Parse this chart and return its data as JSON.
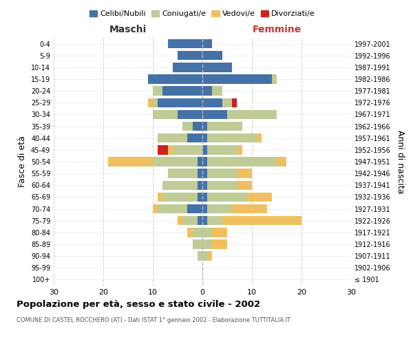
{
  "age_groups": [
    "100+",
    "95-99",
    "90-94",
    "85-89",
    "80-84",
    "75-79",
    "70-74",
    "65-69",
    "60-64",
    "55-59",
    "50-54",
    "45-49",
    "40-44",
    "35-39",
    "30-34",
    "25-29",
    "20-24",
    "15-19",
    "10-14",
    "5-9",
    "0-4"
  ],
  "birth_years": [
    "≤ 1901",
    "1902-1906",
    "1907-1911",
    "1912-1916",
    "1917-1921",
    "1922-1926",
    "1927-1931",
    "1932-1936",
    "1937-1941",
    "1942-1946",
    "1947-1951",
    "1952-1956",
    "1957-1961",
    "1962-1966",
    "1967-1971",
    "1972-1976",
    "1977-1981",
    "1982-1986",
    "1987-1991",
    "1992-1996",
    "1997-2001"
  ],
  "males": {
    "celibi": [
      0,
      0,
      0,
      0,
      0,
      1,
      3,
      1,
      1,
      1,
      1,
      0,
      3,
      2,
      5,
      9,
      8,
      11,
      6,
      5,
      7
    ],
    "coniugati": [
      0,
      0,
      1,
      2,
      2,
      3,
      6,
      7,
      7,
      6,
      9,
      6,
      6,
      2,
      5,
      1,
      2,
      0,
      0,
      0,
      0
    ],
    "vedovi": [
      0,
      0,
      0,
      0,
      1,
      1,
      1,
      1,
      0,
      0,
      9,
      1,
      0,
      0,
      0,
      1,
      0,
      0,
      0,
      0,
      0
    ],
    "divorziati": [
      0,
      0,
      0,
      0,
      0,
      0,
      0,
      0,
      0,
      0,
      0,
      2,
      0,
      0,
      0,
      0,
      0,
      0,
      0,
      0,
      0
    ]
  },
  "females": {
    "nubili": [
      0,
      0,
      0,
      0,
      0,
      1,
      1,
      1,
      1,
      1,
      1,
      1,
      1,
      1,
      5,
      4,
      2,
      14,
      6,
      4,
      2
    ],
    "coniugate": [
      0,
      0,
      1,
      2,
      2,
      3,
      5,
      8,
      6,
      6,
      14,
      6,
      10,
      7,
      10,
      2,
      2,
      1,
      0,
      0,
      0
    ],
    "vedove": [
      0,
      0,
      1,
      3,
      3,
      16,
      7,
      5,
      3,
      3,
      2,
      1,
      1,
      0,
      0,
      0,
      0,
      0,
      0,
      0,
      0
    ],
    "divorziate": [
      0,
      0,
      0,
      0,
      0,
      0,
      0,
      0,
      0,
      0,
      0,
      0,
      0,
      0,
      0,
      1,
      0,
      0,
      0,
      0,
      0
    ]
  },
  "colors": {
    "celibi_nubili": "#4472a8",
    "coniugati": "#bfcc96",
    "vedovi": "#f0c060",
    "divorziati": "#cc2222"
  },
  "title": "Popolazione per età, sesso e stato civile - 2002",
  "subtitle": "COMUNE DI CASTEL ROCCHERO (AT) - Dati ISTAT 1° gennaio 2002 - Elaborazione TUTTITALIA.IT",
  "xlabel_left": "Maschi",
  "xlabel_right": "Femmine",
  "ylabel_left": "Fasce di età",
  "ylabel_right": "Anni di nascita",
  "xlim": 30,
  "background_color": "#ffffff",
  "legend_labels": [
    "Celibi/Nubili",
    "Coniugati/e",
    "Vedovi/e",
    "Divorziati/e"
  ]
}
